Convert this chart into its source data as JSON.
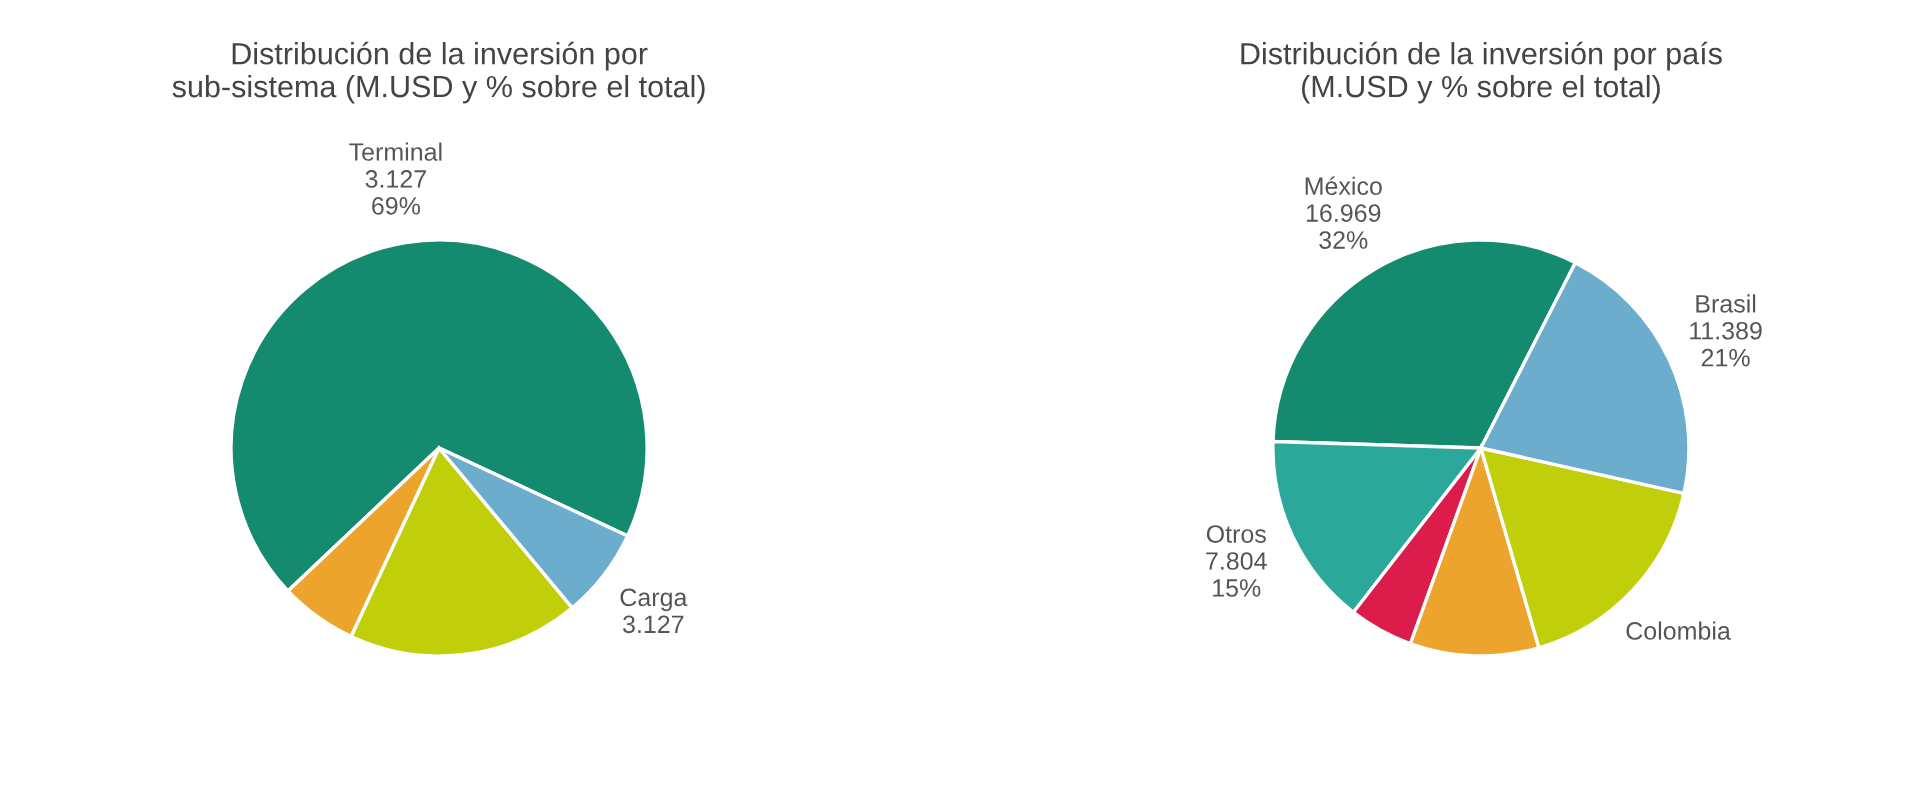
{
  "chart_data": [
    {
      "type": "pie",
      "title": "Distribución de la inversión por\nsub-sistema (M.USD y % sobre el total)",
      "categories": [
        "Terminal",
        null,
        null,
        "Carga"
      ],
      "values": [
        69,
        6,
        18,
        7
      ],
      "colors": [
        "#148b6e",
        "#eca42c",
        "#c0cf0a",
        "#6cadcd"
      ],
      "value_labels": [
        "69%",
        null,
        null,
        null
      ],
      "annotations": [
        {
          "text": "3.127",
          "x": "Terminal"
        },
        {
          "text": "3.127",
          "x": "Carga"
        }
      ]
    },
    {
      "type": "pie",
      "title": "Distribución de la inversión por país\n(M.USD y % sobre el total)",
      "categories": [
        "México",
        "Otros",
        null,
        null,
        "Colombia",
        "Brasil"
      ],
      "values": [
        32,
        15,
        5,
        10,
        17,
        21
      ],
      "colors": [
        "#148b6e",
        "#2ba89a",
        "#dc1c4b",
        "#eca42c",
        "#c0cf0a",
        "#6cadcd"
      ],
      "value_labels": [
        "32%",
        "15%",
        null,
        null,
        null,
        "21%"
      ],
      "annotations": [
        {
          "text": "16.969",
          "x": "México"
        },
        {
          "text": "7.804",
          "x": "Otros"
        },
        {
          "text": "11.389",
          "x": "Brasil"
        }
      ]
    }
  ]
}
